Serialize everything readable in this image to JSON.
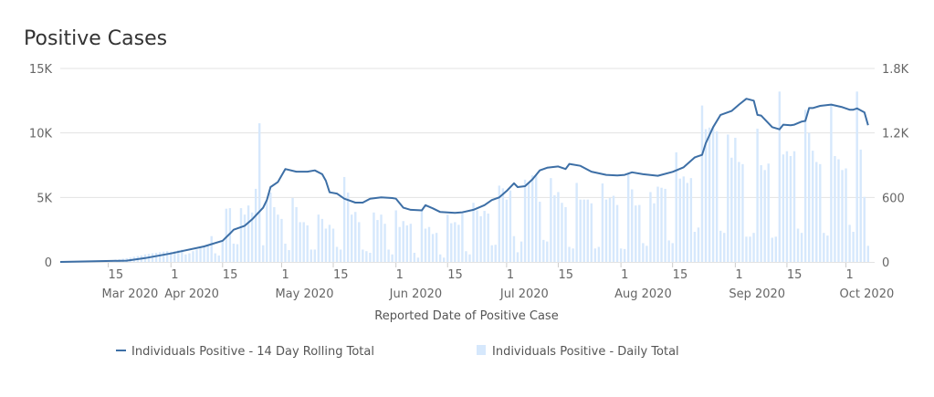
{
  "chart_data": {
    "type": "bar+line",
    "title": "Positive Cases",
    "xlabel": "Reported Date of Positive Case",
    "grid": true,
    "legend_placement": "bottom",
    "y_left": {
      "range": [
        0,
        15000
      ],
      "ticks": [
        0,
        5000,
        10000,
        15000
      ],
      "tick_labels": [
        "0",
        "5K",
        "10K",
        "15K"
      ]
    },
    "y_right": {
      "range": [
        0,
        1800
      ],
      "ticks": [
        0,
        600,
        1200,
        1800
      ],
      "tick_labels": [
        "0",
        "600",
        "1.2K",
        "1.8K"
      ]
    },
    "x_ticks": [
      {
        "date": "2020-03-15",
        "label": "15",
        "month": "Mar 2020"
      },
      {
        "date": "2020-04-01",
        "label": "1",
        "month": "Apr 2020"
      },
      {
        "date": "2020-04-15",
        "label": "15",
        "month": ""
      },
      {
        "date": "2020-05-01",
        "label": "1",
        "month": "May 2020"
      },
      {
        "date": "2020-05-15",
        "label": "15",
        "month": ""
      },
      {
        "date": "2020-06-01",
        "label": "1",
        "month": "Jun 2020"
      },
      {
        "date": "2020-06-15",
        "label": "15",
        "month": ""
      },
      {
        "date": "2020-07-01",
        "label": "1",
        "month": "Jul 2020"
      },
      {
        "date": "2020-07-15",
        "label": "15",
        "month": ""
      },
      {
        "date": "2020-08-01",
        "label": "1",
        "month": "Aug 2020"
      },
      {
        "date": "2020-08-15",
        "label": "15",
        "month": ""
      },
      {
        "date": "2020-09-01",
        "label": "1",
        "month": "Sep 2020"
      },
      {
        "date": "2020-09-15",
        "label": "15",
        "month": ""
      },
      {
        "date": "2020-10-01",
        "label": "1",
        "month": "Oct 2020"
      }
    ],
    "series": [
      {
        "name": "Individuals Positive - 14 Day Rolling Total",
        "kind": "line",
        "axis": "left",
        "color": "#3d6fa6",
        "points": [
          [
            "2020-03-02",
            0
          ],
          [
            "2020-03-20",
            100
          ],
          [
            "2020-03-25",
            300
          ],
          [
            "2020-04-01",
            660
          ],
          [
            "2020-04-10",
            1200
          ],
          [
            "2020-04-15",
            1640
          ],
          [
            "2020-04-17",
            2200
          ],
          [
            "2020-04-18",
            2500
          ],
          [
            "2020-04-21",
            2800
          ],
          [
            "2020-04-23",
            3300
          ],
          [
            "2020-04-26",
            4200
          ],
          [
            "2020-04-27",
            4800
          ],
          [
            "2020-04-28",
            5800
          ],
          [
            "2020-04-30",
            6200
          ],
          [
            "2020-05-02",
            7200
          ],
          [
            "2020-05-05",
            7000
          ],
          [
            "2020-05-08",
            7000
          ],
          [
            "2020-05-10",
            7100
          ],
          [
            "2020-05-12",
            6800
          ],
          [
            "2020-05-13",
            6300
          ],
          [
            "2020-05-14",
            5400
          ],
          [
            "2020-05-16",
            5300
          ],
          [
            "2020-05-18",
            4900
          ],
          [
            "2020-05-21",
            4600
          ],
          [
            "2020-05-23",
            4600
          ],
          [
            "2020-05-25",
            4900
          ],
          [
            "2020-05-28",
            5000
          ],
          [
            "2020-05-31",
            4950
          ],
          [
            "2020-06-01",
            4900
          ],
          [
            "2020-06-03",
            4200
          ],
          [
            "2020-06-05",
            4040
          ],
          [
            "2020-06-08",
            4000
          ],
          [
            "2020-06-09",
            4400
          ],
          [
            "2020-06-11",
            4150
          ],
          [
            "2020-06-13",
            3870
          ],
          [
            "2020-06-17",
            3800
          ],
          [
            "2020-06-19",
            3850
          ],
          [
            "2020-06-22",
            4040
          ],
          [
            "2020-06-25",
            4400
          ],
          [
            "2020-06-27",
            4800
          ],
          [
            "2020-06-29",
            5000
          ],
          [
            "2020-07-01",
            5500
          ],
          [
            "2020-07-03",
            6100
          ],
          [
            "2020-07-04",
            5800
          ],
          [
            "2020-07-06",
            5870
          ],
          [
            "2020-07-08",
            6400
          ],
          [
            "2020-07-10",
            7100
          ],
          [
            "2020-07-12",
            7300
          ],
          [
            "2020-07-15",
            7400
          ],
          [
            "2020-07-17",
            7200
          ],
          [
            "2020-07-18",
            7600
          ],
          [
            "2020-07-21",
            7450
          ],
          [
            "2020-07-24",
            7000
          ],
          [
            "2020-07-28",
            6750
          ],
          [
            "2020-07-31",
            6700
          ],
          [
            "2020-08-02",
            6750
          ],
          [
            "2020-08-04",
            6950
          ],
          [
            "2020-08-07",
            6800
          ],
          [
            "2020-08-11",
            6680
          ],
          [
            "2020-08-15",
            6980
          ],
          [
            "2020-08-18",
            7340
          ],
          [
            "2020-08-21",
            8100
          ],
          [
            "2020-08-23",
            8300
          ],
          [
            "2020-08-24",
            9200
          ],
          [
            "2020-08-26",
            10450
          ],
          [
            "2020-08-28",
            11400
          ],
          [
            "2020-08-31",
            11700
          ],
          [
            "2020-09-02",
            12200
          ],
          [
            "2020-09-04",
            12650
          ],
          [
            "2020-09-06",
            12500
          ],
          [
            "2020-09-07",
            11400
          ],
          [
            "2020-09-08",
            11350
          ],
          [
            "2020-09-11",
            10450
          ],
          [
            "2020-09-13",
            10280
          ],
          [
            "2020-09-14",
            10640
          ],
          [
            "2020-09-16",
            10600
          ],
          [
            "2020-09-17",
            10640
          ],
          [
            "2020-09-19",
            10880
          ],
          [
            "2020-09-20",
            10930
          ],
          [
            "2020-09-21",
            11930
          ],
          [
            "2020-09-22",
            11930
          ],
          [
            "2020-09-24",
            12100
          ],
          [
            "2020-09-27",
            12200
          ],
          [
            "2020-09-30",
            12000
          ],
          [
            "2020-10-02",
            11800
          ],
          [
            "2020-10-03",
            11800
          ],
          [
            "2020-10-04",
            11900
          ],
          [
            "2020-10-06",
            11600
          ],
          [
            "2020-10-07",
            10600
          ]
        ]
      },
      {
        "name": "Individuals Positive - Daily Total",
        "kind": "bar",
        "axis": "right",
        "color": "#d6e8fc",
        "start_date": "2020-03-02",
        "values": [
          0,
          0,
          1,
          1,
          1,
          2,
          2,
          3,
          4,
          5,
          6,
          8,
          10,
          12,
          15,
          20,
          25,
          30,
          35,
          40,
          48,
          55,
          60,
          70,
          75,
          80,
          85,
          90,
          95,
          100,
          95,
          100,
          110,
          115,
          70,
          80,
          100,
          115,
          130,
          145,
          150,
          240,
          80,
          60,
          200,
          495,
          500,
          170,
          165,
          500,
          440,
          525,
          460,
          680,
          1290,
          155,
          565,
          645,
          510,
          440,
          400,
          170,
          110,
          595,
          510,
          370,
          370,
          340,
          115,
          115,
          440,
          400,
          310,
          345,
          310,
          140,
          115,
          790,
          645,
          440,
          465,
          370,
          115,
          100,
          85,
          460,
          390,
          440,
          355,
          115,
          70,
          480,
          325,
          380,
          340,
          355,
          85,
          40,
          480,
          310,
          325,
          260,
          270,
          70,
          40,
          440,
          360,
          370,
          345,
          450,
          100,
          70,
          550,
          480,
          425,
          475,
          450,
          155,
          160,
          710,
          685,
          580,
          665,
          240,
          90,
          190,
          765,
          735,
          805,
          805,
          560,
          205,
          190,
          780,
          620,
          650,
          550,
          510,
          140,
          125,
          735,
          580,
          580,
          580,
          545,
          125,
          140,
          730,
          580,
          595,
          615,
          530,
          125,
          120,
          825,
          675,
          525,
          530,
          175,
          150,
          650,
          545,
          700,
          690,
          680,
          200,
          175,
          1020,
          775,
          795,
          735,
          780,
          280,
          320,
          1455,
          1235,
          1250,
          1255,
          1215,
          290,
          270,
          1185,
          970,
          1155,
          930,
          910,
          235,
          235,
          270,
          1240,
          900,
          855,
          915,
          225,
          235,
          1585,
          1000,
          1030,
          985,
          1030,
          310,
          270,
          1415,
          1200,
          1035,
          930,
          910,
          270,
          245,
          1470,
          985,
          955,
          855,
          870,
          345,
          280,
          1585,
          1045,
          605,
          150
        ]
      }
    ]
  }
}
